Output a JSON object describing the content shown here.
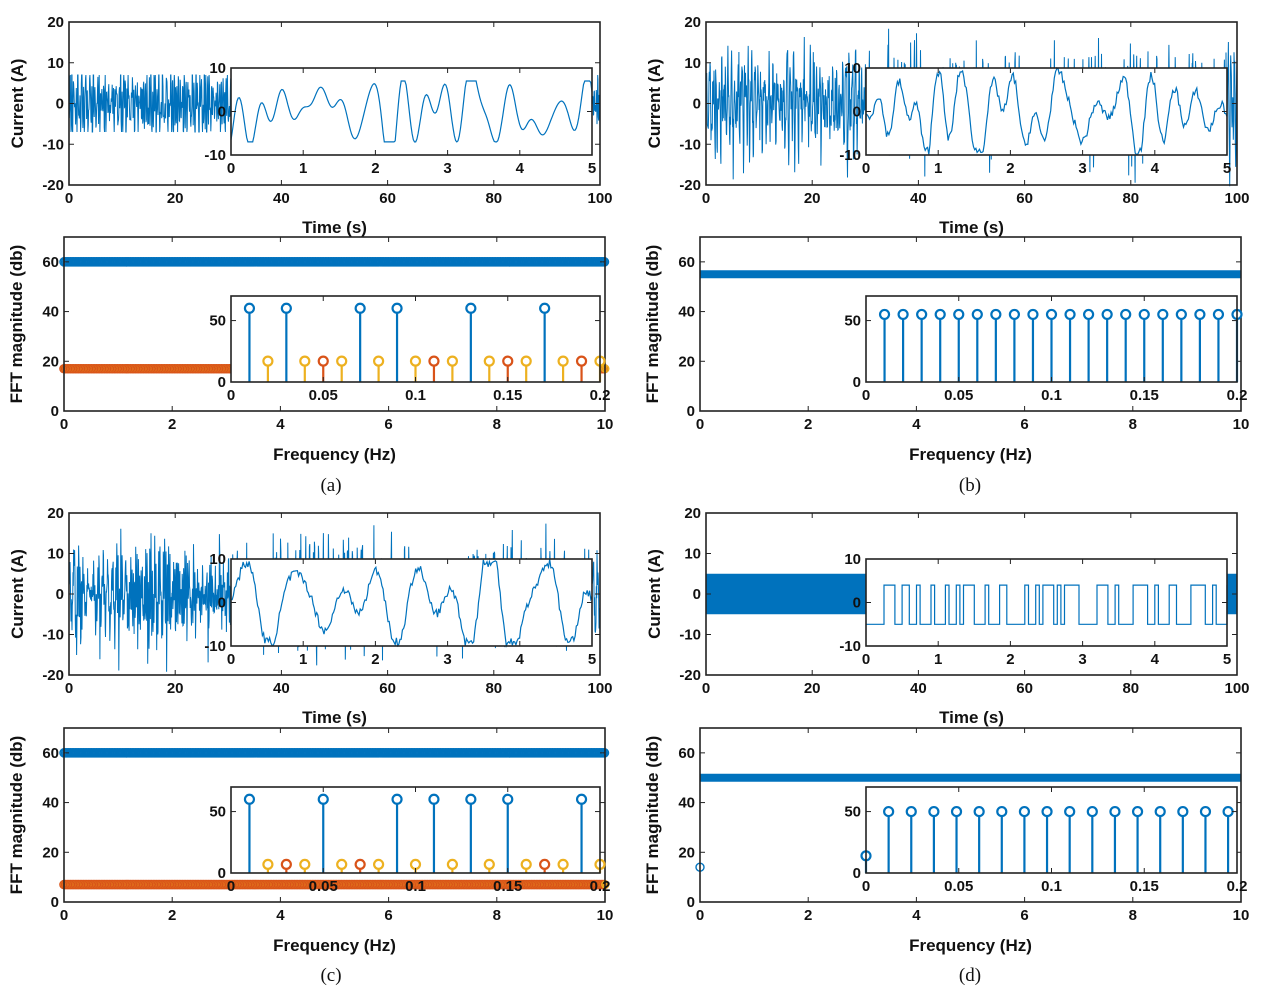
{
  "colors": {
    "blue": "#0072BD",
    "orange": "#D95319",
    "yellow": "#EDB120"
  },
  "chart_data": [
    {
      "caption": "(a)",
      "time": {
        "type": "line",
        "xlabel": "Time (s)",
        "ylabel": "Current (A)",
        "xlim": [
          0,
          100
        ],
        "ylim": [
          -20,
          20
        ],
        "xticks": [
          "0",
          "20",
          "40",
          "60",
          "80",
          "100"
        ],
        "yticks": [
          "-20",
          "-10",
          "0",
          "10",
          "20"
        ],
        "signal": "bounded",
        "amplitude": 7,
        "inset": {
          "xlim": [
            0,
            5
          ],
          "ylim": [
            -10,
            10
          ],
          "xticks": [
            "0",
            "1",
            "2",
            "3",
            "4",
            "5"
          ],
          "yticks": [
            "-10",
            "0",
            "10"
          ]
        }
      },
      "fft": {
        "type": "stem",
        "xlabel": "Frequency (Hz)",
        "ylabel": "FFT magnitude (db)",
        "xlim": [
          0,
          10
        ],
        "ylim": [
          0,
          70
        ],
        "xticks": [
          "0",
          "2",
          "4",
          "6",
          "8",
          "10"
        ],
        "yticks": [
          "0",
          "20",
          "40",
          "60"
        ],
        "levels": [
          {
            "color": "blue",
            "y": 60
          },
          {
            "color": "orange",
            "y": 17
          }
        ],
        "inset": {
          "xlim": [
            0,
            0.2
          ],
          "ylim": [
            0,
            70
          ],
          "xticks": [
            "0",
            "0.05",
            "0.1",
            "0.15",
            "0.2"
          ],
          "yticks": [
            "0",
            "50"
          ],
          "stems": [
            {
              "x": 0.01,
              "y": 60,
              "color": "blue"
            },
            {
              "x": 0.02,
              "y": 17,
              "color": "yellow"
            },
            {
              "x": 0.03,
              "y": 60,
              "color": "blue"
            },
            {
              "x": 0.04,
              "y": 17,
              "color": "yellow"
            },
            {
              "x": 0.05,
              "y": 17,
              "color": "orange"
            },
            {
              "x": 0.06,
              "y": 17,
              "color": "yellow"
            },
            {
              "x": 0.07,
              "y": 60,
              "color": "blue"
            },
            {
              "x": 0.08,
              "y": 17,
              "color": "yellow"
            },
            {
              "x": 0.09,
              "y": 60,
              "color": "blue"
            },
            {
              "x": 0.1,
              "y": 17,
              "color": "yellow"
            },
            {
              "x": 0.11,
              "y": 17,
              "color": "orange"
            },
            {
              "x": 0.12,
              "y": 17,
              "color": "yellow"
            },
            {
              "x": 0.13,
              "y": 60,
              "color": "blue"
            },
            {
              "x": 0.14,
              "y": 17,
              "color": "yellow"
            },
            {
              "x": 0.15,
              "y": 17,
              "color": "orange"
            },
            {
              "x": 0.16,
              "y": 17,
              "color": "yellow"
            },
            {
              "x": 0.17,
              "y": 60,
              "color": "blue"
            },
            {
              "x": 0.18,
              "y": 17,
              "color": "yellow"
            },
            {
              "x": 0.19,
              "y": 17,
              "color": "orange"
            },
            {
              "x": 0.2,
              "y": 17,
              "color": "yellow"
            }
          ]
        }
      }
    },
    {
      "caption": "(b)",
      "time": {
        "type": "line",
        "xlabel": "Time (s)",
        "ylabel": "Current (A)",
        "xlim": [
          0,
          100
        ],
        "ylim": [
          -20,
          20
        ],
        "xticks": [
          "0",
          "20",
          "40",
          "60",
          "80",
          "100"
        ],
        "yticks": [
          "-20",
          "-10",
          "0",
          "10",
          "20"
        ],
        "signal": "noisy",
        "amplitude": 10,
        "inset": {
          "xlim": [
            0,
            5
          ],
          "ylim": [
            -10,
            10
          ],
          "xticks": [
            "0",
            "1",
            "2",
            "3",
            "4",
            "5"
          ],
          "yticks": [
            "-10",
            "0",
            "10"
          ]
        }
      },
      "fft": {
        "type": "stem",
        "xlabel": "Frequency (Hz)",
        "ylabel": "FFT magnitude (db)",
        "xlim": [
          0,
          10
        ],
        "ylim": [
          0,
          70
        ],
        "xticks": [
          "0",
          "2",
          "4",
          "6",
          "8",
          "10"
        ],
        "yticks": [
          "0",
          "20",
          "40",
          "60"
        ],
        "levels": [
          {
            "color": "blue",
            "y": 55,
            "solid": true
          }
        ],
        "inset": {
          "xlim": [
            0,
            0.2
          ],
          "ylim": [
            0,
            70
          ],
          "xticks": [
            "0",
            "0.05",
            "0.1",
            "0.15",
            "0.2"
          ],
          "yticks": [
            "0",
            "50"
          ],
          "stems": [
            {
              "x": 0.01,
              "y": 55,
              "color": "blue"
            },
            {
              "x": 0.02,
              "y": 55,
              "color": "blue"
            },
            {
              "x": 0.03,
              "y": 55,
              "color": "blue"
            },
            {
              "x": 0.04,
              "y": 55,
              "color": "blue"
            },
            {
              "x": 0.05,
              "y": 55,
              "color": "blue"
            },
            {
              "x": 0.06,
              "y": 55,
              "color": "blue"
            },
            {
              "x": 0.07,
              "y": 55,
              "color": "blue"
            },
            {
              "x": 0.08,
              "y": 55,
              "color": "blue"
            },
            {
              "x": 0.09,
              "y": 55,
              "color": "blue"
            },
            {
              "x": 0.1,
              "y": 55,
              "color": "blue"
            },
            {
              "x": 0.11,
              "y": 55,
              "color": "blue"
            },
            {
              "x": 0.12,
              "y": 55,
              "color": "blue"
            },
            {
              "x": 0.13,
              "y": 55,
              "color": "blue"
            },
            {
              "x": 0.14,
              "y": 55,
              "color": "blue"
            },
            {
              "x": 0.15,
              "y": 55,
              "color": "blue"
            },
            {
              "x": 0.16,
              "y": 55,
              "color": "blue"
            },
            {
              "x": 0.17,
              "y": 55,
              "color": "blue"
            },
            {
              "x": 0.18,
              "y": 55,
              "color": "blue"
            },
            {
              "x": 0.19,
              "y": 55,
              "color": "blue"
            },
            {
              "x": 0.2,
              "y": 55,
              "color": "blue"
            }
          ]
        }
      }
    },
    {
      "caption": "(c)",
      "time": {
        "type": "line",
        "xlabel": "Time (s)",
        "ylabel": "Current (A)",
        "xlim": [
          0,
          100
        ],
        "ylim": [
          -20,
          20
        ],
        "xticks": [
          "0",
          "20",
          "40",
          "60",
          "80",
          "100"
        ],
        "yticks": [
          "-20",
          "-10",
          "0",
          "10",
          "20"
        ],
        "signal": "noisy",
        "amplitude": 10,
        "inset": {
          "xlim": [
            0,
            5
          ],
          "ylim": [
            -10,
            10
          ],
          "xticks": [
            "0",
            "1",
            "2",
            "3",
            "4",
            "5"
          ],
          "yticks": [
            "-10",
            "0",
            "10"
          ]
        }
      },
      "fft": {
        "type": "stem",
        "xlabel": "Frequency (Hz)",
        "ylabel": "FFT magnitude (db)",
        "xlim": [
          0,
          10
        ],
        "ylim": [
          0,
          70
        ],
        "xticks": [
          "0",
          "2",
          "4",
          "6",
          "8",
          "10"
        ],
        "yticks": [
          "0",
          "20",
          "40",
          "60"
        ],
        "levels": [
          {
            "color": "blue",
            "y": 60
          },
          {
            "color": "orange",
            "y": 7
          }
        ],
        "inset": {
          "xlim": [
            0,
            0.2
          ],
          "ylim": [
            0,
            70
          ],
          "xticks": [
            "0",
            "0.05",
            "0.1",
            "0.15",
            "0.2"
          ],
          "yticks": [
            "0",
            "50"
          ],
          "stems": [
            {
              "x": 0.01,
              "y": 60,
              "color": "blue"
            },
            {
              "x": 0.02,
              "y": 7,
              "color": "yellow"
            },
            {
              "x": 0.03,
              "y": 7,
              "color": "orange"
            },
            {
              "x": 0.04,
              "y": 7,
              "color": "yellow"
            },
            {
              "x": 0.05,
              "y": 60,
              "color": "blue"
            },
            {
              "x": 0.06,
              "y": 7,
              "color": "yellow"
            },
            {
              "x": 0.07,
              "y": 7,
              "color": "orange"
            },
            {
              "x": 0.08,
              "y": 7,
              "color": "yellow"
            },
            {
              "x": 0.09,
              "y": 60,
              "color": "blue"
            },
            {
              "x": 0.1,
              "y": 7,
              "color": "yellow"
            },
            {
              "x": 0.11,
              "y": 60,
              "color": "blue"
            },
            {
              "x": 0.12,
              "y": 7,
              "color": "yellow"
            },
            {
              "x": 0.13,
              "y": 60,
              "color": "blue"
            },
            {
              "x": 0.14,
              "y": 7,
              "color": "yellow"
            },
            {
              "x": 0.15,
              "y": 60,
              "color": "blue"
            },
            {
              "x": 0.16,
              "y": 7,
              "color": "yellow"
            },
            {
              "x": 0.17,
              "y": 7,
              "color": "orange"
            },
            {
              "x": 0.18,
              "y": 7,
              "color": "yellow"
            },
            {
              "x": 0.19,
              "y": 60,
              "color": "blue"
            },
            {
              "x": 0.2,
              "y": 7,
              "color": "yellow"
            }
          ]
        }
      }
    },
    {
      "caption": "(d)",
      "time": {
        "type": "line",
        "xlabel": "Time (s)",
        "ylabel": "Current (A)",
        "xlim": [
          0,
          100
        ],
        "ylim": [
          -20,
          20
        ],
        "xticks": [
          "0",
          "20",
          "40",
          "60",
          "80",
          "100"
        ],
        "yticks": [
          "-20",
          "-10",
          "0",
          "10",
          "20"
        ],
        "signal": "square",
        "levels": [
          -5,
          4
        ],
        "inset": {
          "xlim": [
            0,
            5
          ],
          "ylim": [
            -10,
            10
          ],
          "xticks": [
            "0",
            "1",
            "2",
            "3",
            "4",
            "5"
          ],
          "yticks": [
            "-10",
            "0",
            "10"
          ]
        }
      },
      "fft": {
        "type": "stem",
        "xlabel": "Frequency (Hz)",
        "ylabel": "FFT magnitude (db)",
        "xlim": [
          0,
          10
        ],
        "ylim": [
          0,
          70
        ],
        "xticks": [
          "0",
          "2",
          "4",
          "6",
          "8",
          "10"
        ],
        "yticks": [
          "0",
          "20",
          "40",
          "60"
        ],
        "levels": [
          {
            "color": "blue",
            "y": 50,
            "solid": true
          }
        ],
        "dc": {
          "x": 0,
          "y": 14
        },
        "inset": {
          "xlim": [
            0,
            0.2
          ],
          "ylim": [
            0,
            70
          ],
          "xticks": [
            "0",
            "0.05",
            "0.1",
            "0.15",
            "0.2"
          ],
          "yticks": [
            "0",
            "50"
          ],
          "stems": [
            {
              "x": 0,
              "y": 14,
              "color": "blue"
            },
            {
              "x": 0.0122,
              "y": 50,
              "color": "blue"
            },
            {
              "x": 0.0244,
              "y": 50,
              "color": "blue"
            },
            {
              "x": 0.0366,
              "y": 50,
              "color": "blue"
            },
            {
              "x": 0.0488,
              "y": 50,
              "color": "blue"
            },
            {
              "x": 0.061,
              "y": 50,
              "color": "blue"
            },
            {
              "x": 0.0732,
              "y": 50,
              "color": "blue"
            },
            {
              "x": 0.0854,
              "y": 50,
              "color": "blue"
            },
            {
              "x": 0.0976,
              "y": 50,
              "color": "blue"
            },
            {
              "x": 0.1098,
              "y": 50,
              "color": "blue"
            },
            {
              "x": 0.122,
              "y": 50,
              "color": "blue"
            },
            {
              "x": 0.1342,
              "y": 50,
              "color": "blue"
            },
            {
              "x": 0.1464,
              "y": 50,
              "color": "blue"
            },
            {
              "x": 0.1586,
              "y": 50,
              "color": "blue"
            },
            {
              "x": 0.1708,
              "y": 50,
              "color": "blue"
            },
            {
              "x": 0.183,
              "y": 50,
              "color": "blue"
            },
            {
              "x": 0.1952,
              "y": 50,
              "color": "blue"
            }
          ]
        }
      }
    }
  ]
}
